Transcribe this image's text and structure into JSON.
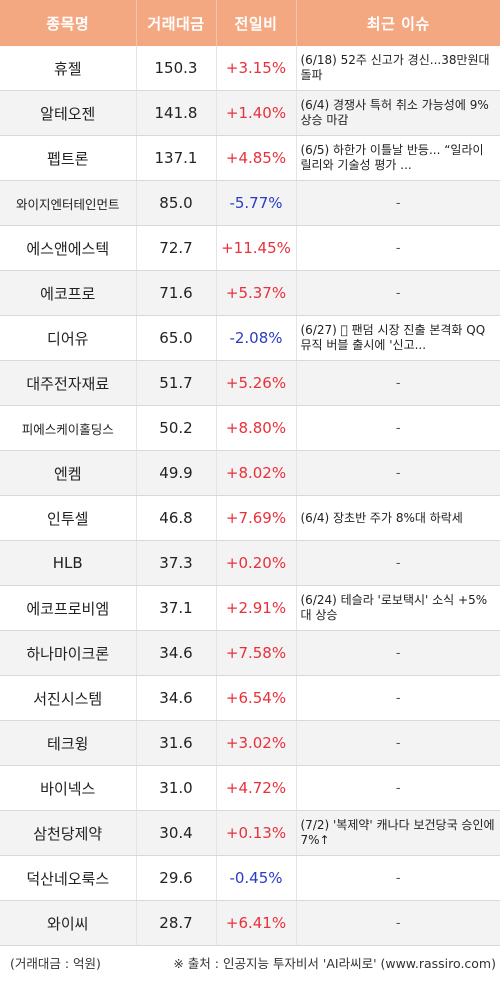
{
  "header": {
    "col_name": "종목명",
    "col_volume": "거래대금",
    "col_change": "전일비",
    "col_issue": "최근 이슈"
  },
  "rows": [
    {
      "name": "휴젤",
      "volume": "150.3",
      "change": "+3.15%",
      "dir": "up",
      "issue": "(6/18) 52주 신고가 경신...38만원대 돌파"
    },
    {
      "name": "알테오젠",
      "volume": "141.8",
      "change": "+1.40%",
      "dir": "up",
      "issue": "(6/4) 경쟁사 특허 취소 가능성에 9% 상승 마감"
    },
    {
      "name": "펩트론",
      "volume": "137.1",
      "change": "+4.85%",
      "dir": "up",
      "issue": "(6/5) 하한가 이틀날 반등... “일라이 릴리와 기술성 평가 ..."
    },
    {
      "name": "와이지엔터테인먼트",
      "volume": "85.0",
      "change": "-5.77%",
      "dir": "down",
      "issue": "-",
      "small": true
    },
    {
      "name": "에스앤에스텍",
      "volume": "72.7",
      "change": "+11.45%",
      "dir": "up",
      "issue": "-"
    },
    {
      "name": "에코프로",
      "volume": "71.6",
      "change": "+5.37%",
      "dir": "up",
      "issue": "-"
    },
    {
      "name": "디어유",
      "volume": "65.0",
      "change": "-2.08%",
      "dir": "down",
      "issue": "(6/27) 󰠀 팬덤 시장 진출 본격화 QQ뮤직 버블 출시에 '신고..."
    },
    {
      "name": "대주전자재료",
      "volume": "51.7",
      "change": "+5.26%",
      "dir": "up",
      "issue": "-"
    },
    {
      "name": "피에스케이홀딩스",
      "volume": "50.2",
      "change": "+8.80%",
      "dir": "up",
      "issue": "-",
      "small": true
    },
    {
      "name": "엔켐",
      "volume": "49.9",
      "change": "+8.02%",
      "dir": "up",
      "issue": "-"
    },
    {
      "name": "인투셀",
      "volume": "46.8",
      "change": "+7.69%",
      "dir": "up",
      "issue": "(6/4) 장초반 주가 8%대 하락세"
    },
    {
      "name": "HLB",
      "volume": "37.3",
      "change": "+0.20%",
      "dir": "up",
      "issue": "-"
    },
    {
      "name": "에코프로비엠",
      "volume": "37.1",
      "change": "+2.91%",
      "dir": "up",
      "issue": "(6/24) 테슬라 '로보택시' 소식 +5%대 상승"
    },
    {
      "name": "하나마이크론",
      "volume": "34.6",
      "change": "+7.58%",
      "dir": "up",
      "issue": "-"
    },
    {
      "name": "서진시스템",
      "volume": "34.6",
      "change": "+6.54%",
      "dir": "up",
      "issue": "-"
    },
    {
      "name": "테크윙",
      "volume": "31.6",
      "change": "+3.02%",
      "dir": "up",
      "issue": "-"
    },
    {
      "name": "바이넥스",
      "volume": "31.0",
      "change": "+4.72%",
      "dir": "up",
      "issue": "-"
    },
    {
      "name": "삼천당제약",
      "volume": "30.4",
      "change": "+0.13%",
      "dir": "up",
      "issue": "(7/2) '복제약' 캐나다 보건당국 승인에 7%↑"
    },
    {
      "name": "덕산네오룩스",
      "volume": "29.6",
      "change": "-0.45%",
      "dir": "down",
      "issue": "-"
    },
    {
      "name": "와이씨",
      "volume": "28.7",
      "change": "+6.41%",
      "dir": "up",
      "issue": "-"
    }
  ],
  "footer": {
    "unit": "(거래대금 : 억원)",
    "source": "※ 출처 : 인공지능 투자비서 'AI라씨로' (www.rassiro.com)"
  },
  "colors": {
    "header_bg": "#f4a882",
    "up": "#e8313a",
    "down": "#2b3bc4",
    "stripe": "#f3f3f3"
  }
}
